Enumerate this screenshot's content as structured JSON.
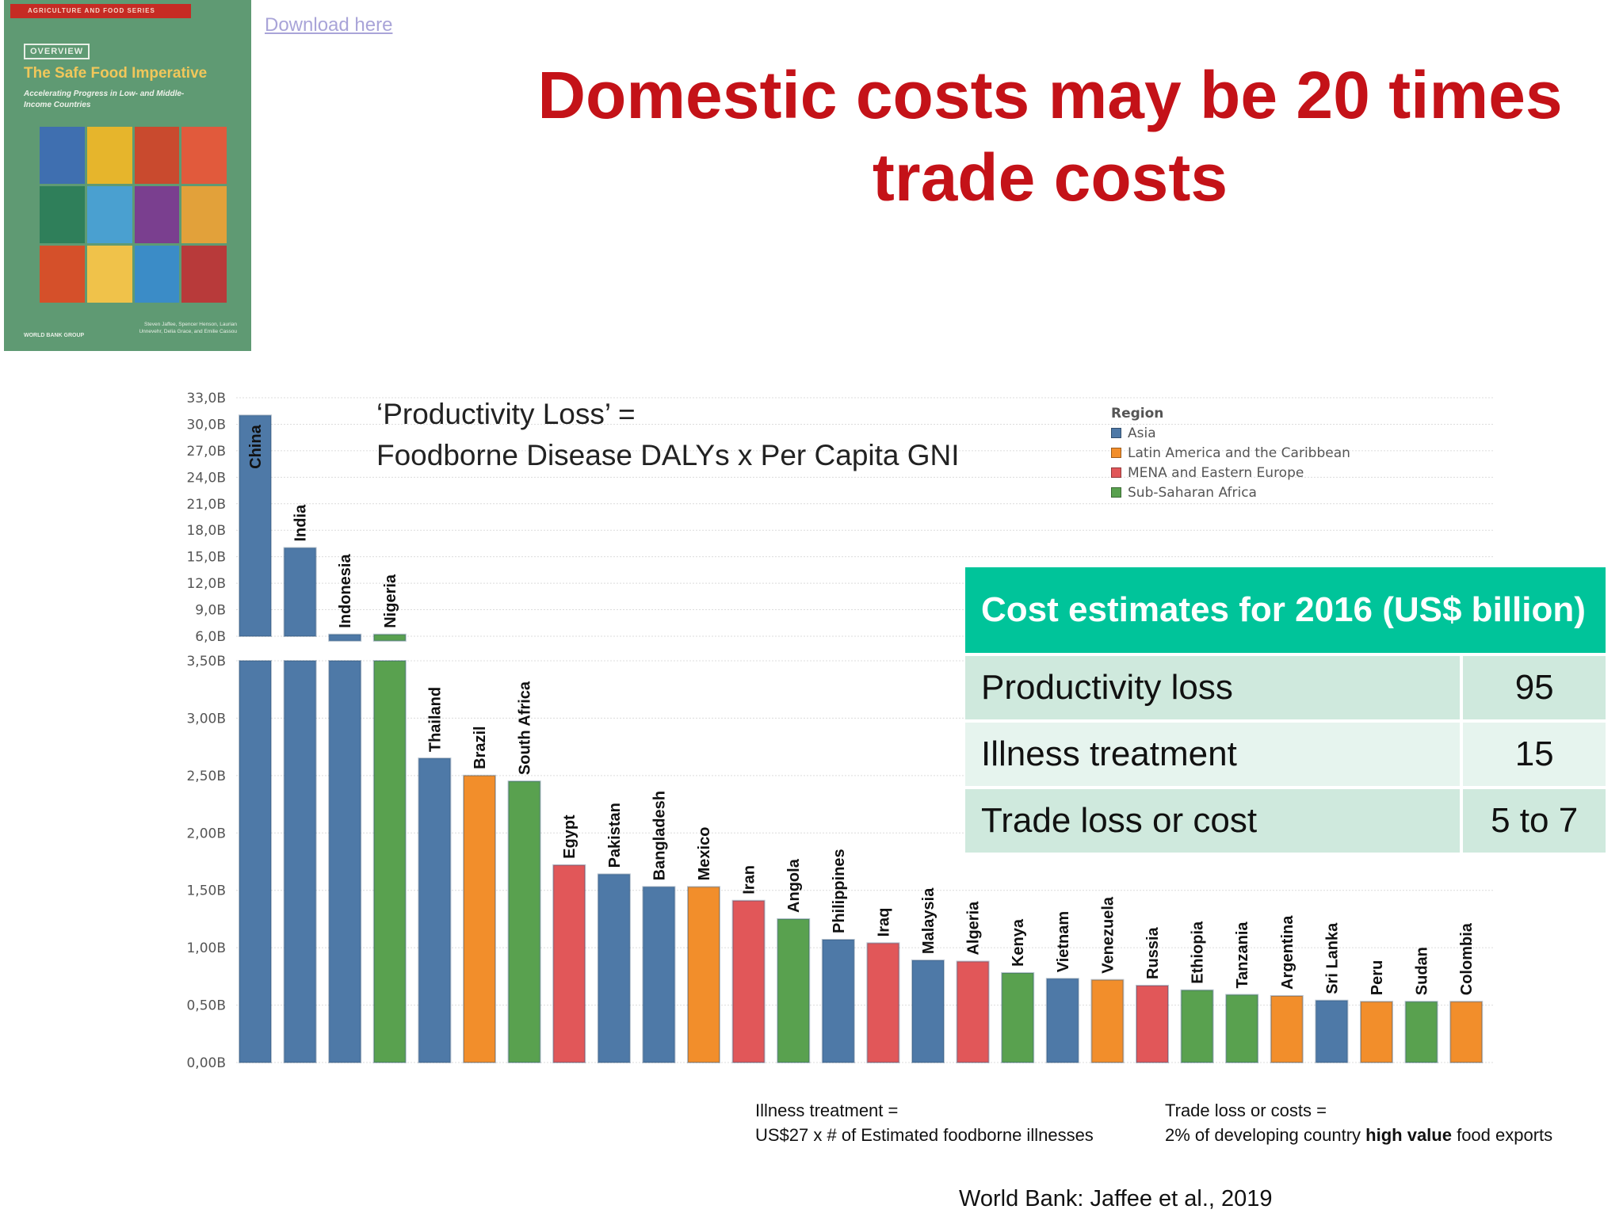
{
  "cover": {
    "series": "AGRICULTURE AND FOOD SERIES",
    "overview": "OVERVIEW",
    "title": "The Safe Food Imperative",
    "subtitle": "Accelerating Progress in Low- and Middle-Income Countries",
    "publisher": "WORLD BANK GROUP",
    "authors": "Steven Jaffee, Spencer Henson, Laurian Unnevehr, Delia Grace, and Emilie Cassou"
  },
  "download_link": "Download here",
  "title": "Domestic costs may be 20 times trade costs",
  "formula": {
    "line1": "‘Productivity Loss’  =",
    "line2": "Foodborne Disease DALYs x Per Capita GNI"
  },
  "cost_table": {
    "header": "Cost estimates for 2016 (US$ billion)",
    "rows": [
      {
        "label": "Productivity loss",
        "value": "95"
      },
      {
        "label": "Illness treatment",
        "value": "15"
      },
      {
        "label": "Trade loss or cost",
        "value": "5 to 7"
      }
    ]
  },
  "notes": {
    "illness_line1": "Illness treatment =",
    "illness_line2": "US$27 x # of Estimated foodborne illnesses",
    "trade_line1": "Trade loss or costs =",
    "trade_line2_pre": "2% of developing country ",
    "trade_line2_bold": "high value",
    "trade_line2_post": " food exports"
  },
  "source": "World Bank: Jaffee et al., 2019",
  "colors": {
    "Asia": "#4e79a7",
    "Latin America and the Caribbean": "#f28e2b",
    "MENA and Eastern Europe": "#e15759",
    "Sub-Saharan Africa": "#59a14f"
  },
  "chart_data": {
    "type": "bar",
    "legend_title": "Region",
    "legend": [
      "Asia",
      "Latin America and the Caribbean",
      "MENA and Eastern Europe",
      "Sub-Saharan Africa"
    ],
    "legend_position": "top-right",
    "grid": true,
    "y_axis": "broken",
    "y_lower_ticks": [
      "0,00B",
      "0,50B",
      "1,00B",
      "1,50B",
      "2,00B",
      "2,50B",
      "3,00B",
      "3,50B"
    ],
    "y_lower_range": [
      0,
      3.5
    ],
    "y_upper_ticks": [
      "6,0B",
      "9,0B",
      "12,0B",
      "15,0B",
      "18,0B",
      "21,0B",
      "24,0B",
      "27,0B",
      "30,0B",
      "33,0B"
    ],
    "y_upper_range": [
      6,
      33
    ],
    "unit": "US$ billion",
    "categories": [
      "China",
      "India",
      "Indonesia",
      "Nigeria",
      "Thailand",
      "Brazil",
      "South Africa",
      "Egypt",
      "Pakistan",
      "Bangladesh",
      "Mexico",
      "Iran",
      "Angola",
      "Philippines",
      "Iraq",
      "Malaysia",
      "Algeria",
      "Kenya",
      "Vietnam",
      "Venezuela",
      "Russia",
      "Ethiopia",
      "Tanzania",
      "Argentina",
      "Sri Lanka",
      "Peru",
      "Sudan",
      "Colombia"
    ],
    "values": [
      31.0,
      16.0,
      6.2,
      6.2,
      2.65,
      2.5,
      2.45,
      1.72,
      1.64,
      1.53,
      1.53,
      1.41,
      1.25,
      1.07,
      1.04,
      0.89,
      0.88,
      0.78,
      0.73,
      0.72,
      0.67,
      0.63,
      0.59,
      0.58,
      0.54,
      0.53,
      0.53,
      0.53
    ],
    "regions": [
      "Asia",
      "Asia",
      "Asia",
      "Sub-Saharan Africa",
      "Asia",
      "Latin America and the Caribbean",
      "Sub-Saharan Africa",
      "MENA and Eastern Europe",
      "Asia",
      "Asia",
      "Latin America and the Caribbean",
      "MENA and Eastern Europe",
      "Sub-Saharan Africa",
      "Asia",
      "MENA and Eastern Europe",
      "Asia",
      "MENA and Eastern Europe",
      "Sub-Saharan Africa",
      "Asia",
      "Latin America and the Caribbean",
      "MENA and Eastern Europe",
      "Sub-Saharan Africa",
      "Sub-Saharan Africa",
      "Latin America and the Caribbean",
      "Asia",
      "Latin America and the Caribbean",
      "Sub-Saharan Africa",
      "Latin America and the Caribbean"
    ]
  }
}
